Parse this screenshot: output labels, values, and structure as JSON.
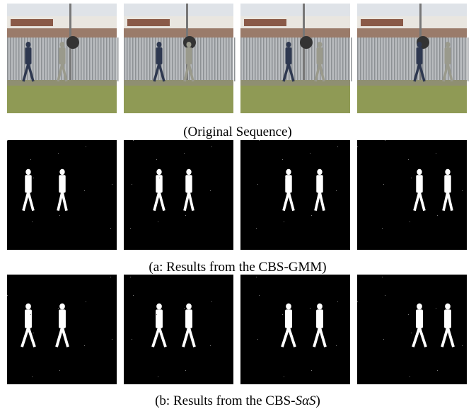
{
  "captions": [
    {
      "text": "(Original Sequence)"
    },
    {
      "text": "(a: Results from the CBS-GMM)"
    },
    {
      "prefix": "(b: Results from the CBS-",
      "math": "SαS",
      "suffix": ")"
    }
  ]
}
